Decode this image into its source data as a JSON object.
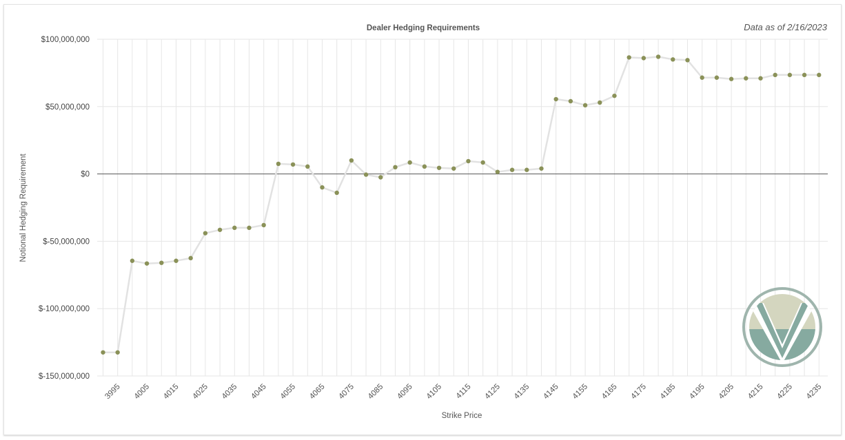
{
  "as_of_text": "Data as of 2/16/2023",
  "logo": {
    "icon": "checkmark-v-logo",
    "colors": {
      "ring": "#9fb5ad",
      "top": "#d4d6bf",
      "bottom": "#86aaa0"
    }
  },
  "colors": {
    "line": "#e2e2e2",
    "marker": "#8a9158",
    "grid": "#e6e6e6",
    "zero_line": "#555555"
  },
  "chart_data": {
    "type": "line",
    "title": "Dealer Hedging Requirements",
    "xlabel": "Strike Price",
    "ylabel": "Notional Hedging Requirement",
    "ylim": [
      -150000000,
      100000000
    ],
    "yticks": [
      100000000,
      50000000,
      0,
      -50000000,
      -100000000,
      -150000000
    ],
    "ytick_labels": [
      "$100,000,000",
      "$50,000,000",
      "$0",
      "$-50,000,000",
      "$-100,000,000",
      "$-150,000,000"
    ],
    "xticks": [
      3995,
      4005,
      4015,
      4025,
      4035,
      4045,
      4055,
      4065,
      4075,
      4085,
      4095,
      4105,
      4115,
      4125,
      4135,
      4145,
      4155,
      4165,
      4175,
      4185,
      4195,
      4205,
      4215,
      4225,
      4235
    ],
    "grid": true,
    "legend": "none",
    "x": [
      3990,
      3995,
      4000,
      4005,
      4010,
      4015,
      4020,
      4025,
      4030,
      4035,
      4040,
      4045,
      4050,
      4055,
      4060,
      4065,
      4070,
      4075,
      4080,
      4085,
      4090,
      4095,
      4100,
      4105,
      4110,
      4115,
      4120,
      4125,
      4130,
      4135,
      4140,
      4145,
      4150,
      4155,
      4160,
      4165,
      4170,
      4175,
      4180,
      4185,
      4190,
      4195,
      4200,
      4205,
      4210,
      4215,
      4220,
      4225,
      4230,
      4235
    ],
    "y": [
      -132500000,
      -132500000,
      -64500000,
      -66500000,
      -66000000,
      -64500000,
      -62500000,
      -44000000,
      -41500000,
      -40000000,
      -40000000,
      -38000000,
      7500000,
      7000000,
      5500000,
      -10000000,
      -14000000,
      10000000,
      -500000,
      -2500000,
      5000000,
      8500000,
      5500000,
      4500000,
      4000000,
      9500000,
      8500000,
      1500000,
      3000000,
      3000000,
      4000000,
      55500000,
      54000000,
      51000000,
      53000000,
      58000000,
      86500000,
      86000000,
      87000000,
      85000000,
      84500000,
      71500000,
      71500000,
      70500000,
      71000000,
      71000000,
      73500000,
      73500000,
      73500000,
      73500000
    ]
  }
}
